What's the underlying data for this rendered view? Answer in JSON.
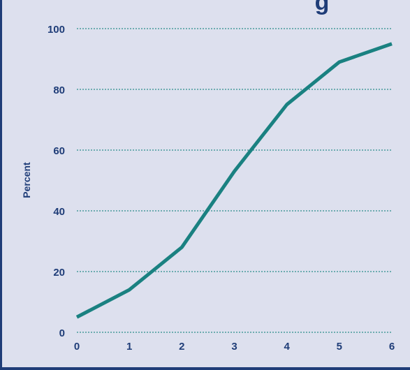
{
  "chart_data": {
    "type": "line",
    "title": "g",
    "xlabel": "",
    "ylabel": "Percent",
    "x": [
      0,
      1,
      2,
      3,
      4,
      5,
      6
    ],
    "series": [
      {
        "values": [
          5,
          14,
          28,
          53,
          75,
          89,
          95
        ]
      }
    ],
    "xticks": [
      "0",
      "1",
      "2",
      "3",
      "4",
      "5",
      "6"
    ],
    "yticks": [
      "0",
      "20",
      "40",
      "60",
      "80",
      "100"
    ],
    "xlim": [
      0,
      6
    ],
    "ylim": [
      0,
      100
    ],
    "grid": "horizontal-dotted",
    "line_color": "#1a8181",
    "grid_color": "#2b8c8c",
    "text_color": "#1f3d78"
  }
}
